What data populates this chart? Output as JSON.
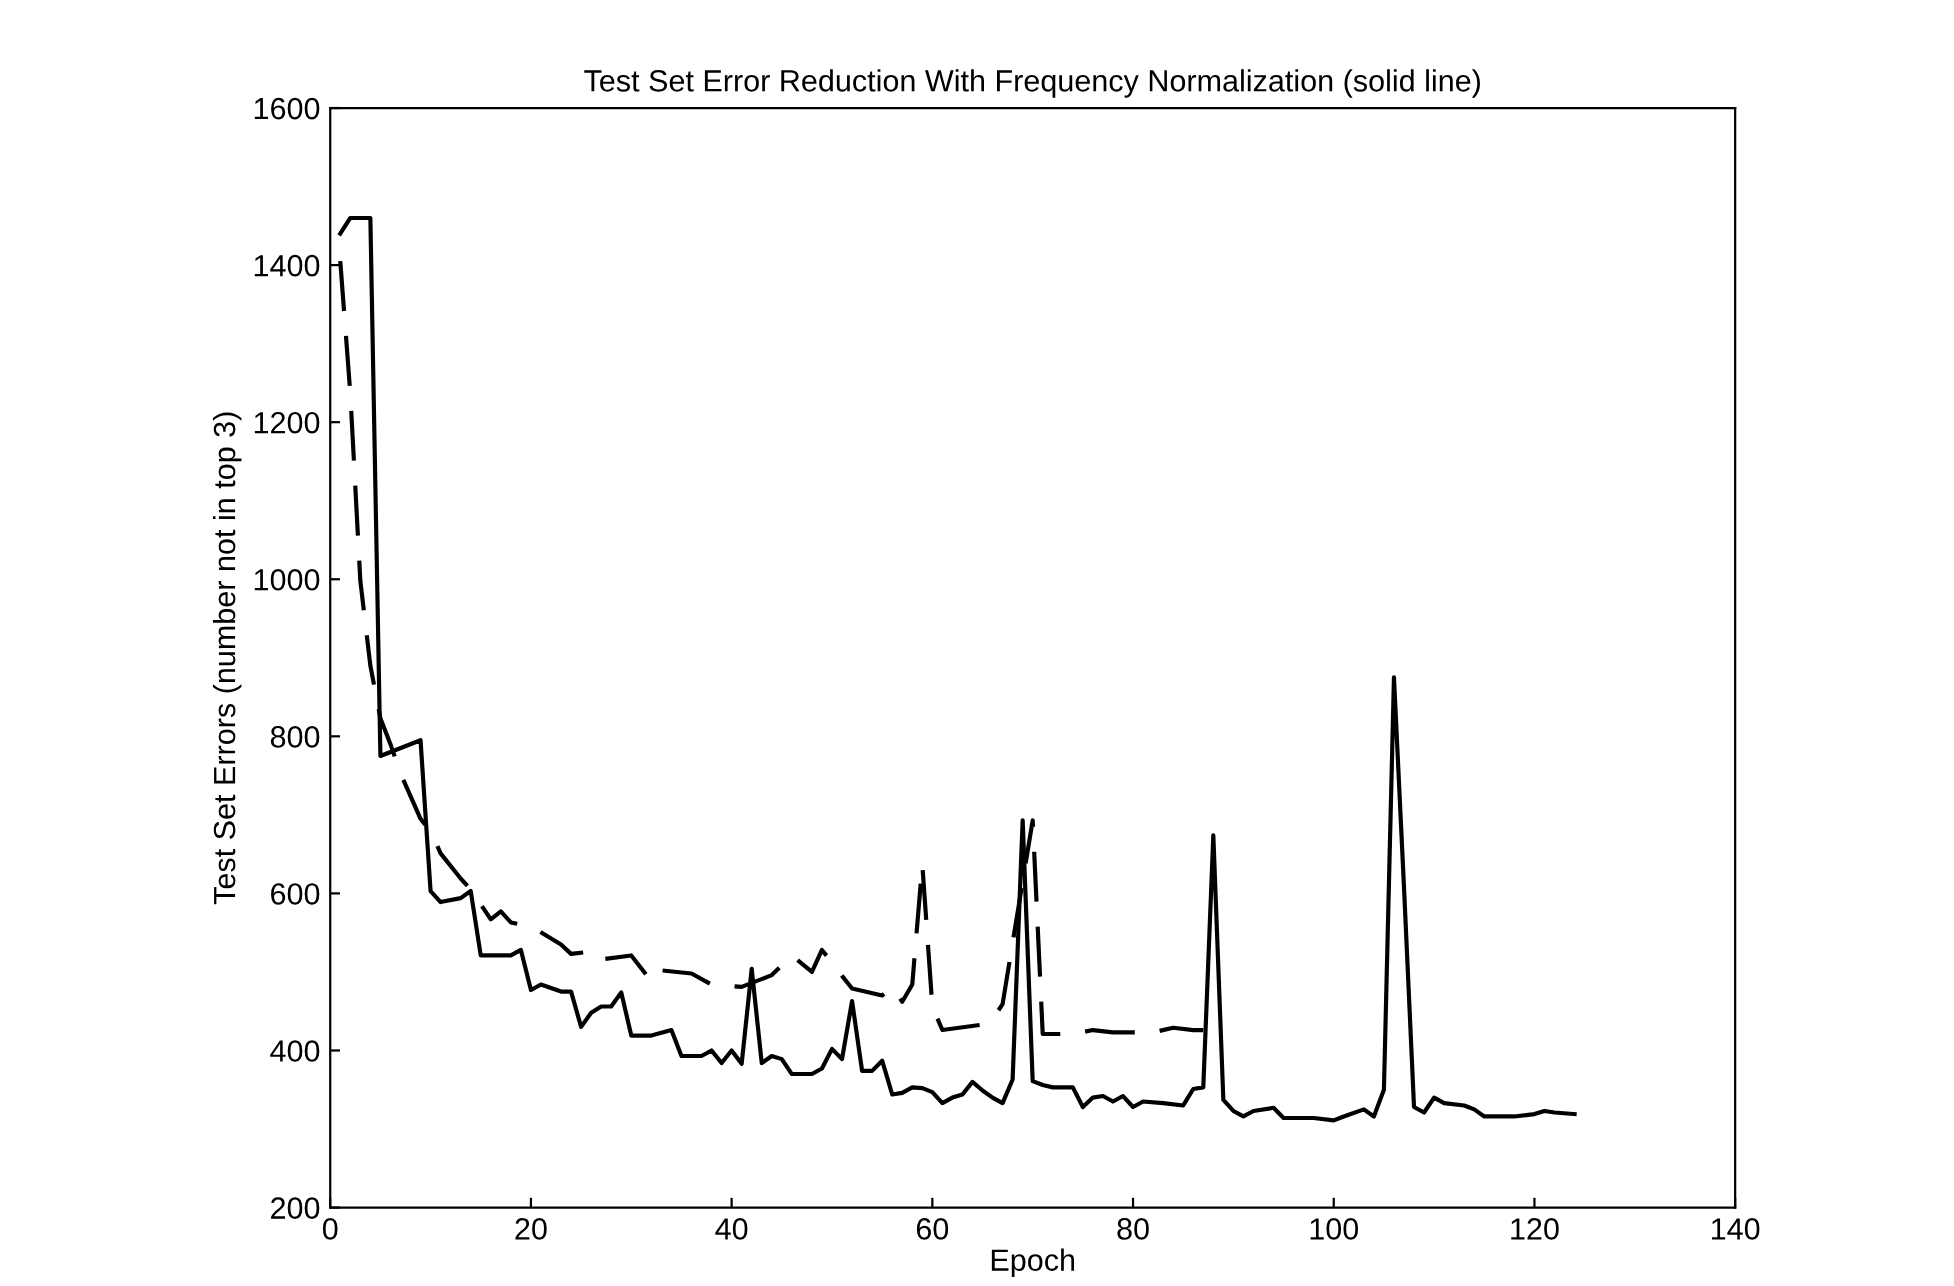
{
  "chart_data": {
    "type": "line",
    "title": "Test Set Error Reduction With Frequency Normalization (solid line)",
    "xlabel": "Epoch",
    "ylabel": "Test Set Errors (number not in top 3)",
    "xlim": [
      0,
      140
    ],
    "xticks": [
      0,
      20,
      40,
      60,
      80,
      100,
      120,
      140
    ],
    "ylim": [
      200,
      1600
    ],
    "yticks": [
      200,
      400,
      600,
      800,
      1000,
      1200,
      1400,
      1600
    ],
    "grid": false,
    "legend": false,
    "series": [
      {
        "color": "#000000",
        "line_style": "solid",
        "x": [
          1,
          2,
          4,
          5,
          9,
          10,
          11,
          13,
          14,
          15,
          18,
          19,
          20,
          21,
          23,
          24,
          25,
          26,
          27,
          28,
          29,
          30,
          32,
          34,
          35,
          37,
          38,
          39,
          40,
          41,
          42,
          43,
          44,
          45,
          46,
          48,
          49,
          50,
          51,
          52,
          53,
          54,
          55,
          56,
          57,
          58,
          59,
          60,
          61,
          62,
          63,
          64,
          65,
          66,
          67,
          68,
          69,
          70,
          71,
          72,
          74,
          75,
          76,
          77,
          78,
          79,
          80,
          81,
          83,
          85,
          86,
          87,
          88,
          89,
          90,
          91,
          92,
          94,
          95,
          98,
          100,
          101,
          103,
          104,
          105,
          106,
          107,
          108,
          109,
          110,
          111,
          113,
          114,
          115,
          118,
          120,
          121,
          122,
          124
        ],
        "values": [
          1440,
          1460,
          1460,
          775,
          795,
          603,
          589,
          594,
          603,
          521,
          521,
          528,
          477,
          484,
          475,
          475,
          430,
          448,
          456,
          456,
          474,
          419,
          419,
          426,
          393,
          393,
          400,
          384,
          400,
          383,
          504,
          384,
          393,
          389,
          370,
          370,
          377,
          402,
          389,
          463,
          374,
          374,
          387,
          344,
          346,
          353,
          352,
          347,
          333,
          340,
          344,
          360,
          349,
          340,
          333,
          363,
          693,
          361,
          356,
          353,
          353,
          328,
          340,
          342,
          335,
          342,
          328,
          335,
          333,
          330,
          351,
          353,
          674,
          337,
          323,
          316,
          323,
          327,
          314,
          314,
          311,
          316,
          325,
          316,
          350,
          875,
          608,
          328,
          321,
          340,
          333,
          330,
          325,
          316,
          316,
          319,
          323,
          321,
          319
        ]
      },
      {
        "color": "#000000",
        "line_style": "dashed",
        "x": [
          1,
          2,
          3,
          4,
          5,
          6,
          7,
          9,
          10,
          11,
          13,
          14,
          16,
          17,
          18,
          20,
          23,
          24,
          26,
          27,
          30,
          32,
          33,
          36,
          38,
          41,
          44,
          46,
          48,
          49,
          50,
          51,
          52,
          55,
          56,
          57,
          58,
          59,
          60,
          61,
          65,
          66,
          67,
          70,
          71,
          74,
          76,
          78,
          82,
          84,
          86,
          87
        ],
        "values": [
          1405,
          1237,
          998,
          890,
          823,
          790,
          753,
          695,
          679,
          651,
          619,
          605,
          567,
          577,
          563,
          558,
          535,
          523,
          526,
          516,
          521,
          488,
          502,
          498,
          484,
          481,
          496,
          521,
          500,
          528,
          512,
          495,
          479,
          470,
          481,
          462,
          484,
          637,
          456,
          426,
          433,
          440,
          459,
          693,
          421,
          421,
          426,
          423,
          423,
          429,
          426,
          426
        ]
      }
    ]
  }
}
